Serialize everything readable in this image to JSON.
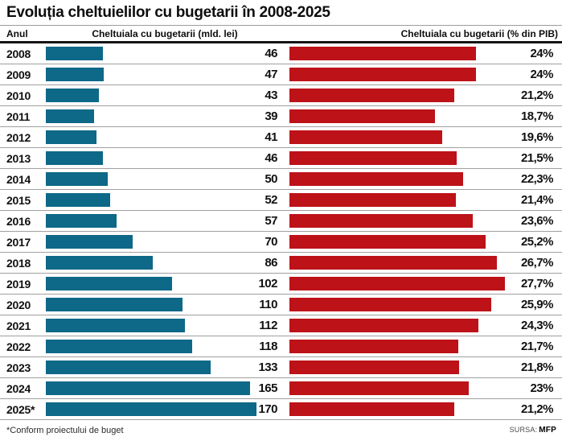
{
  "title": "Evoluția cheltuielilor cu bugetarii în 2008-2025",
  "columns": {
    "year": "Anul",
    "lei": "Cheltuiala cu bugetarii (mld. lei)",
    "pib": "Cheltuiala cu bugetarii (% din PIB)"
  },
  "footnote": "*Conform proiectului de buget",
  "source_label": "SURSA:",
  "source_value": "MFP",
  "colors": {
    "blue_bar": "#0e6887",
    "red_bar": "#bc1218",
    "rule": "#a0a0a0"
  },
  "chart_data": {
    "type": "bar",
    "orientation": "horizontal",
    "title": "Evoluția cheltuielilor cu bugetarii în 2008-2025",
    "categories": [
      "2008",
      "2009",
      "2010",
      "2011",
      "2012",
      "2013",
      "2014",
      "2015",
      "2016",
      "2017",
      "2018",
      "2019",
      "2020",
      "2021",
      "2022",
      "2023",
      "2024",
      "2025*"
    ],
    "series": [
      {
        "name": "Cheltuiala cu bugetarii (mld. lei)",
        "color": "#0e6887",
        "values": [
          46,
          47,
          43,
          39,
          41,
          46,
          50,
          52,
          57,
          70,
          86,
          102,
          110,
          112,
          118,
          133,
          165,
          170
        ],
        "labels": [
          "46",
          "47",
          "43",
          "39",
          "41",
          "46",
          "50",
          "52",
          "57",
          "70",
          "86",
          "102",
          "110",
          "112",
          "118",
          "133",
          "165",
          "170"
        ],
        "axis_max": 170
      },
      {
        "name": "Cheltuiala cu bugetarii (% din PIB)",
        "color": "#bc1218",
        "values": [
          24,
          24,
          21.2,
          18.7,
          19.6,
          21.5,
          22.3,
          21.4,
          23.6,
          25.2,
          26.7,
          27.7,
          25.9,
          24.3,
          21.7,
          21.8,
          23,
          21.2
        ],
        "labels": [
          "24%",
          "24%",
          "21,2%",
          "18,7%",
          "19,6%",
          "21,5%",
          "22,3%",
          "21,4%",
          "23,6%",
          "25,2%",
          "26,7%",
          "27,7%",
          "25,9%",
          "24,3%",
          "21,7%",
          "21,8%",
          "23%",
          "21,2%"
        ],
        "axis_max": 27.7
      }
    ],
    "legend": "none",
    "grid": "row separators only",
    "footnote": "*Conform proiectului de buget",
    "source": "MFP"
  }
}
